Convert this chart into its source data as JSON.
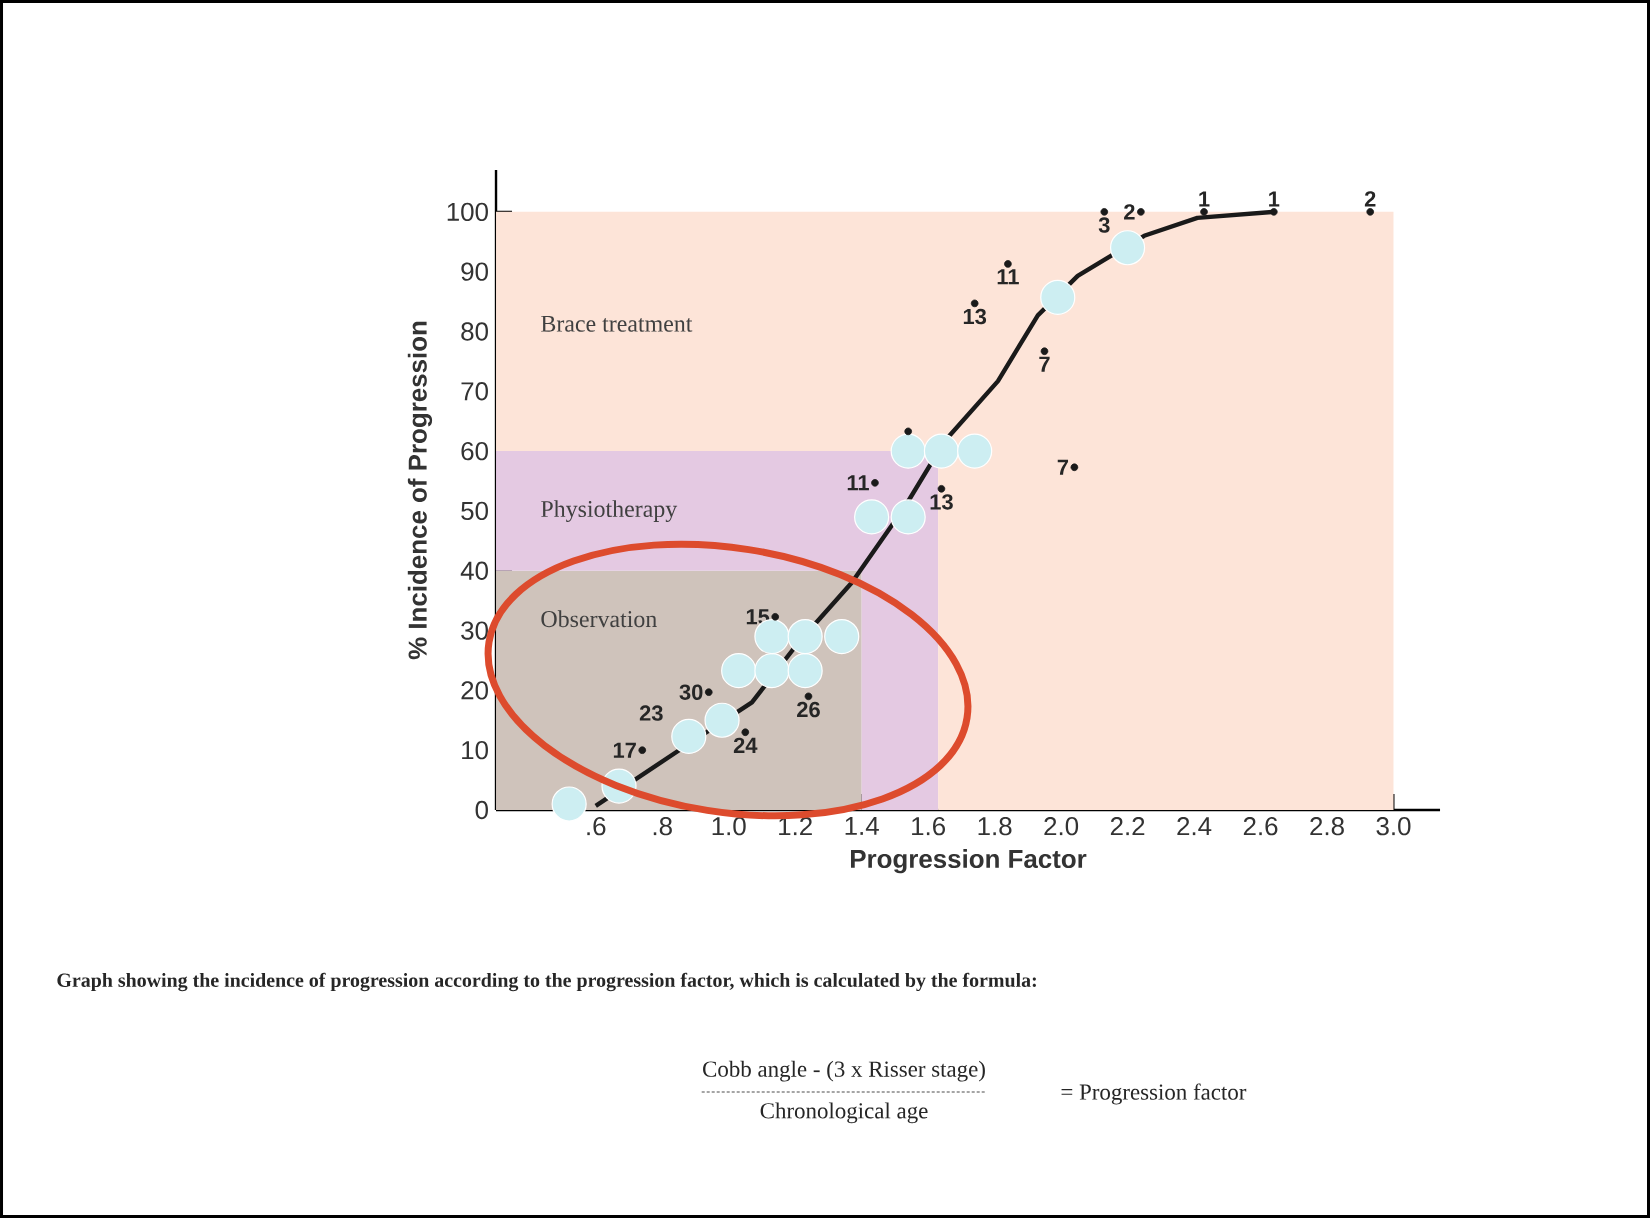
{
  "chart_data": {
    "type": "line",
    "stacked": true,
    "xlabel": "Progression Factor",
    "ylabel": "% Incidence of Progression",
    "xlim": [
      0.3,
      3.14
    ],
    "ylim": [
      0,
      107
    ],
    "xticks": [
      {
        "value": 0.6,
        "label": ".6"
      },
      {
        "value": 0.8,
        "label": ".8"
      },
      {
        "value": 1.0,
        "label": "1.0"
      },
      {
        "value": 1.2,
        "label": "1.2"
      },
      {
        "value": 1.4,
        "label": "1.4"
      },
      {
        "value": 1.6,
        "label": "1.6"
      },
      {
        "value": 1.8,
        "label": "1.8"
      },
      {
        "value": 2.0,
        "label": "2.0"
      },
      {
        "value": 2.2,
        "label": "2.2"
      },
      {
        "value": 2.4,
        "label": "2.4"
      },
      {
        "value": 2.6,
        "label": "2.6"
      },
      {
        "value": 2.8,
        "label": "2.8"
      },
      {
        "value": 3.0,
        "label": "3.0"
      }
    ],
    "yticks": [
      0,
      10,
      20,
      30,
      40,
      50,
      60,
      70,
      80,
      90,
      100
    ],
    "series": [
      {
        "name": "Observation",
        "type": "area",
        "color": "#cfc3bb",
        "x": [
          0.3,
          1.4,
          1.4,
          1.63,
          1.63,
          3.0
        ],
        "values": [
          40,
          40,
          0,
          0,
          0,
          0
        ]
      },
      {
        "name": "Physiotherapy",
        "type": "area",
        "color": "#e4c9e2",
        "x": [
          0.3,
          1.4,
          1.4,
          1.63,
          1.63,
          3.0
        ],
        "values": [
          20,
          20,
          60,
          60,
          0,
          0
        ]
      },
      {
        "name": "Brace treatment",
        "type": "area",
        "color": "#fde4d8",
        "x": [
          0.3,
          1.4,
          1.4,
          1.63,
          1.63,
          3.0
        ],
        "values": [
          40,
          40,
          40,
          40,
          100,
          100
        ]
      },
      {
        "type": "scatter",
        "color": "#cdeef2",
        "marker": "circle",
        "x": [
          0.52,
          0.67,
          0.88,
          0.98,
          1.03,
          1.13,
          1.23,
          1.13,
          1.23,
          1.34,
          1.43,
          1.54,
          1.54,
          1.64,
          1.74,
          1.99,
          2.2
        ],
        "values": [
          1,
          4,
          12.3,
          15,
          23.3,
          23.3,
          23.3,
          29,
          29,
          29,
          49,
          49,
          60,
          60,
          60,
          85.7,
          94
        ]
      },
      {
        "color": "#1a1a1a",
        "marker": "none",
        "line_style": "solid",
        "x": [
          0.6,
          0.87,
          1.07,
          1.21,
          1.37,
          1.53,
          1.65,
          1.81,
          1.93,
          2.05,
          2.25,
          2.41,
          2.64
        ],
        "values": [
          0.7,
          10.7,
          18,
          28,
          38,
          50.7,
          61.7,
          71.7,
          82.7,
          89.3,
          96,
          99,
          100
        ]
      },
      {
        "type": "scatter",
        "color": "#1a1a1a",
        "marker": "circle",
        "x": [
          0.74,
          1.05,
          0.94,
          1.14,
          1.24,
          1.44,
          1.64,
          1.54,
          1.74,
          1.84,
          1.95,
          2.04,
          2.13,
          2.24,
          2.43,
          2.64,
          2.93
        ],
        "values": [
          10,
          13,
          19.7,
          32.3,
          19,
          54.7,
          53.7,
          63.3,
          84.7,
          91.3,
          76.7,
          57.3,
          100,
          100,
          100,
          100,
          100
        ]
      }
    ],
    "annotations": [
      {
        "text": "17",
        "x": 0.74,
        "y": 10
      },
      {
        "text": "24",
        "x": 1.05,
        "y": 13
      },
      {
        "text": "30",
        "x": 0.94,
        "y": 19.7
      },
      {
        "text": "23",
        "x": 0.82,
        "y": 14
      },
      {
        "text": "15",
        "x": 1.14,
        "y": 32.3
      },
      {
        "text": "26",
        "x": 1.24,
        "y": 19
      },
      {
        "text": "11",
        "x": 1.44,
        "y": 54.7
      },
      {
        "text": "13",
        "x": 1.64,
        "y": 53.7
      },
      {
        "text": "13",
        "x": 1.74,
        "y": 84.7
      },
      {
        "text": "11",
        "x": 1.84,
        "y": 91.3
      },
      {
        "text": "7",
        "x": 1.95,
        "y": 76.7
      },
      {
        "text": "7",
        "x": 2.04,
        "y": 57.3
      },
      {
        "text": "3",
        "x": 2.13,
        "y": 100
      },
      {
        "text": "2",
        "x": 2.24,
        "y": 100
      },
      {
        "text": "1",
        "x": 2.43,
        "y": 100
      },
      {
        "text": "1",
        "x": 2.64,
        "y": 100
      },
      {
        "text": "2",
        "x": 2.93,
        "y": 100
      },
      "Graph showing the incidence of progression according to the progression factor, which is calculated by the formula:",
      "Cobb angle - (3 x Risser stage)",
      "Chronological age",
      "= Progression factor"
    ]
  }
}
